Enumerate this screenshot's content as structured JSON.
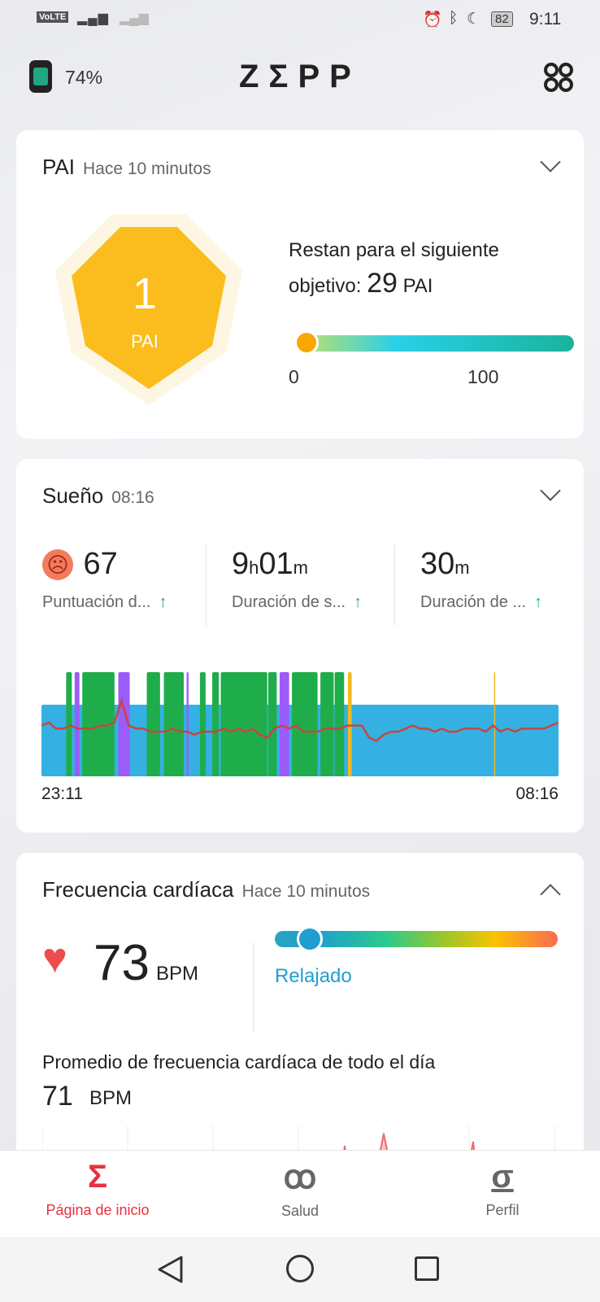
{
  "status_bar": {
    "left_icons": [
      "volte-icon",
      "sim-icon",
      "4g-signal-icon",
      "signal-icon"
    ],
    "right_icons": [
      "alarm-icon",
      "bluetooth-icon",
      "moon-icon"
    ],
    "battery": "82",
    "time": "9:11"
  },
  "header": {
    "device_battery": "74%",
    "logo": "ZΣPP",
    "device_icon": "watch-icon",
    "menu_icon": "grid-icon"
  },
  "pai": {
    "title": "PAI",
    "subtitle": "Hace 10 minutos",
    "value": "1",
    "unit": "PAI",
    "text1": "Restan para el siguiente",
    "text2": "objetivo: ",
    "remaining": "29",
    "remaining_unit": "PAI",
    "scale_min": "0",
    "scale_max": "100",
    "progress": 1,
    "colors": {
      "badge": "#fbbd1e",
      "knob": "#f8a800"
    }
  },
  "sleep": {
    "title": "Sueño",
    "subtitle": "08:16",
    "metrics": [
      {
        "icon": "sad-face-icon",
        "value": "67",
        "unit": "",
        "label": "Puntuación d..."
      },
      {
        "value_h": "9",
        "unit_h": "h",
        "value_m": "01",
        "unit_m": "m",
        "label": "Duración de s..."
      },
      {
        "value": "30",
        "unit": "m",
        "label": "Duración de ..."
      }
    ],
    "chart_data": {
      "type": "timeline",
      "start": "23:11",
      "end": "08:16",
      "duration_minutes": 545,
      "stage_colors": {
        "light": "#35b0e2",
        "deep": "#1fad4c",
        "rem": "#9b5cf7",
        "awake": "#f6b81c",
        "heart_rate": "#c9453f"
      },
      "deep": [
        [
          26,
          32
        ],
        [
          43,
          77
        ],
        [
          111,
          125
        ],
        [
          129,
          150
        ],
        [
          167,
          173
        ],
        [
          180,
          187
        ],
        [
          189,
          238
        ],
        [
          239,
          248
        ],
        [
          264,
          291
        ],
        [
          294,
          308
        ],
        [
          309,
          319
        ]
      ],
      "rem": [
        [
          35,
          40
        ],
        [
          81,
          93
        ],
        [
          153,
          155
        ],
        [
          251,
          261
        ]
      ],
      "awake": [
        [
          323,
          327
        ],
        [
          477,
          478
        ]
      ],
      "heart_rate": [
        62,
        63,
        61,
        61,
        62,
        61,
        61,
        61,
        62,
        62,
        63,
        70,
        62,
        61,
        61,
        60,
        60,
        60,
        61,
        60,
        60,
        59,
        60,
        60,
        60,
        61,
        60,
        61,
        60,
        61,
        59,
        58,
        61,
        62,
        61,
        62,
        60,
        60,
        60,
        61,
        61,
        61,
        62,
        62,
        62,
        58,
        57,
        59,
        60,
        60,
        61,
        62,
        61,
        61,
        60,
        61,
        60,
        60,
        61,
        61,
        61,
        60,
        62,
        60,
        61,
        60,
        61,
        61,
        61,
        61,
        62,
        63
      ]
    }
  },
  "heart": {
    "title": "Frecuencia cardíaca",
    "subtitle": "Hace 10 minutos",
    "value": "73",
    "unit": "BPM",
    "zone": "Relajado",
    "zone_position": 0.08,
    "avg_label": "Promedio de frecuencia cardíaca de todo el día",
    "avg_value": "71",
    "avg_unit": "BPM"
  },
  "bottom_nav": [
    {
      "label": "Página de inicio",
      "icon": "sigma-icon",
      "active": true
    },
    {
      "label": "Salud",
      "icon": "health-icon"
    },
    {
      "label": "Perfil",
      "icon": "profile-icon"
    }
  ],
  "colors": {
    "accent": "#e8313f",
    "teal": "#1aa88a",
    "relaxed": "#1e9fd0"
  }
}
